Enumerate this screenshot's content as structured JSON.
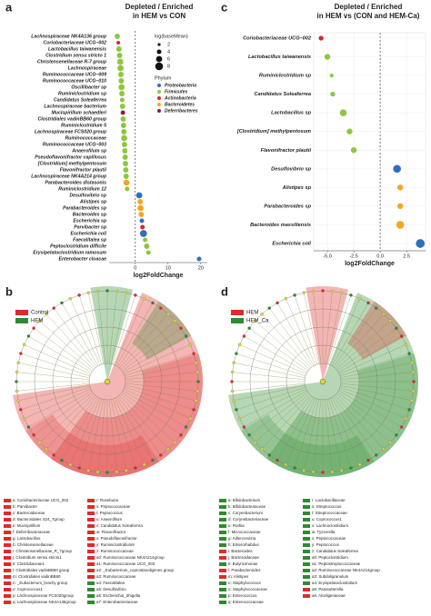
{
  "chart_data": [
    {
      "panel": "a",
      "type": "dot",
      "title": [
        "Depleted / Enriched",
        "in HEM vs CON"
      ],
      "x_label": "log2FoldChange",
      "categories": [
        "Lachnospiraceae NK4A136 group",
        "Coriobacteriaceae UCG–002",
        "Lactobacillus taiwanensis",
        "Clostridium sensu stricto 1",
        "Christensenellaceae R-7 group",
        "Lachnospiraceae",
        "Ruminococcaceae UCG–009",
        "Ruminococcaceae UCG–010",
        "Oscillibacter sp",
        "Ruminiclostridium sp",
        "Candidatus Soleaferrea",
        "Lachnospiraceae bacterium",
        "Mucispirillum schaedleri",
        "Clostridiales vadinBB60 group",
        "Ruminiclostridium 5",
        "Lachnospiraceae FCS020 group",
        "Ruminococcaceae",
        "Ruminococcaceae UCG–003",
        "Anaerofilum sp",
        "Pseudoflavonifractor capillosus",
        "[Clostridium] methylpentosum",
        "Flavonifractor plautii",
        "Lachnospiraceae NK4A214 group",
        "Parabacteroides distasonis",
        "Ruminiclostridium 12",
        "Desulfovibrio sp",
        "Alistipes sp",
        "Parabacteroides sp",
        "Bacteroides sp",
        "Escherichia sp",
        "Parvibacter sp",
        "Escherichia coli",
        "Faecalitalea sp",
        "Peptoclostridium difficile",
        "Erysipelatoclostridium ramosum",
        "Enterobacter cloacae"
      ],
      "values": [
        -5.5,
        -5.2,
        -5,
        -4.8,
        -4.6,
        -4.5,
        -4.4,
        -4.3,
        -4.2,
        -4.1,
        -4,
        -3.9,
        -3.8,
        -3.7,
        -3.6,
        -3.5,
        -3.4,
        -3.3,
        -3.2,
        -3.1,
        -3,
        -2.9,
        -2.8,
        -2.7,
        -2.5,
        1.2,
        1.5,
        1.6,
        1.8,
        2,
        2.2,
        2.5,
        3,
        3.5,
        4,
        19.5
      ],
      "sizes": [
        5,
        3,
        5,
        5,
        6,
        6,
        5,
        5,
        6,
        5,
        4,
        5,
        4,
        5,
        5,
        5,
        6,
        5,
        5,
        5,
        5,
        5,
        5,
        6,
        4,
        6,
        5,
        6,
        5,
        4,
        4,
        7,
        4,
        5,
        4,
        4
      ],
      "groups": [
        "Firmicutes",
        "Actinobacteria",
        "Firmicutes",
        "Firmicutes",
        "Firmicutes",
        "Firmicutes",
        "Firmicutes",
        "Firmicutes",
        "Firmicutes",
        "Firmicutes",
        "Firmicutes",
        "Firmicutes",
        "Deferribacteres",
        "Firmicutes",
        "Firmicutes",
        "Firmicutes",
        "Firmicutes",
        "Firmicutes",
        "Firmicutes",
        "Firmicutes",
        "Firmicutes",
        "Firmicutes",
        "Firmicutes",
        "Bacteroidetes",
        "Firmicutes",
        "Proteobacteria",
        "Bacteroidetes",
        "Bacteroidetes",
        "Bacteroidetes",
        "Proteobacteria",
        "Actinobacteria",
        "Proteobacteria",
        "Firmicutes",
        "Firmicutes",
        "Firmicutes",
        "Proteobacteria"
      ],
      "size_legend": {
        "title": "log(baseMean)",
        "values": [
          2,
          4,
          6,
          8
        ]
      },
      "group_legend": {
        "title": "Phylum",
        "names": [
          "Proteobacteria",
          "Firmicutes",
          "Actinobacteria",
          "Bacteroidetes",
          "Deferribacteres"
        ],
        "colors": [
          "#2f6fc0",
          "#8dc63f",
          "#d6272e",
          "#f5a623",
          "#8b1a4a"
        ]
      },
      "xlim": [
        -8,
        22
      ],
      "xticks": [
        0,
        10,
        20
      ],
      "zero_line": true,
      "grid": false
    },
    {
      "panel": "c",
      "type": "dot",
      "title": [
        "Depleted / Enriched",
        "in HEM vs (CON and HEM-Ca)"
      ],
      "x_label": "log2FoldChange",
      "categories": [
        "Coriobacteriaceae UCG–002",
        "Lactobacillus taiwanensis",
        "Ruminiclostridium sp",
        "Candidatus Soleaferrea",
        "Lactobacillus sp",
        "[Clostridium] methylpentosum",
        "Flavonifractor plautii",
        "Desulfovibrio sp",
        "Alistipes sp",
        "Parabacteroides sp",
        "Bacteroides massiliensis",
        "Escherichia coli"
      ],
      "values": [
        -5.6,
        -5,
        -4.6,
        -4.5,
        -3.5,
        -2.9,
        -2.5,
        1.6,
        1.9,
        1.9,
        1.9,
        3.8
      ],
      "sizes": [
        3,
        4,
        2,
        3,
        5,
        4,
        4,
        6,
        4,
        4,
        6,
        7
      ],
      "groups": [
        "Actinobacteria",
        "Firmicutes",
        "Firmicutes",
        "Firmicutes",
        "Firmicutes",
        "Firmicutes",
        "Firmicutes",
        "Proteobacteria",
        "Bacteroidetes",
        "Bacteroidetes",
        "Bacteroidetes",
        "Proteobacteria"
      ],
      "group_colors": {
        "Proteobacteria": "#2f6fc0",
        "Firmicutes": "#8dc63f",
        "Actinobacteria": "#d6272e",
        "Bacteroidetes": "#f5a623"
      },
      "xlim": [
        -6.3,
        4.3
      ],
      "xticks": [
        {
          "value": -5,
          "label": "-5.0"
        },
        {
          "value": -2.5,
          "label": "-2.5"
        },
        {
          "value": 0,
          "label": "0.0"
        },
        {
          "value": 2.5,
          "label": "2.5"
        }
      ],
      "zero_line": true,
      "grid": true
    }
  ],
  "cladograms": [
    {
      "panel": "b",
      "legend": [
        {
          "name": "Control",
          "color": "#e02a2a"
        },
        {
          "name": "HEM",
          "color": "#2e8b2e"
        }
      ],
      "taxa": [
        {
          "label": "a: Coriobacteriaceae UCG_002",
          "color": "#e02a2a"
        },
        {
          "label": "b: Parvibacter",
          "color": "#e02a2a"
        },
        {
          "label": "c: Bacteroidaceae",
          "color": "#e02a2a"
        },
        {
          "label": "d: Bacteroidales S24_7group",
          "color": "#e02a2a"
        },
        {
          "label": "e: Mucispirillum",
          "color": "#e02a2a"
        },
        {
          "label": "f: Deferribacteraceae",
          "color": "#e02a2a"
        },
        {
          "label": "g: Lactobacillus",
          "color": "#e02a2a"
        },
        {
          "label": "h: Christensenellaceae",
          "color": "#e02a2a"
        },
        {
          "label": "i: Christensenellaceae_R_7group",
          "color": "#e02a2a"
        },
        {
          "label": "j: Clostridium sensu stricto1",
          "color": "#e02a2a"
        },
        {
          "label": "k: Clostridiaceae1",
          "color": "#e02a2a"
        },
        {
          "label": "l: Clostridiales vadinBB60 group",
          "color": "#e02a2a"
        },
        {
          "label": "m: Clostridiales vadinBB60",
          "color": "#e02a2a"
        },
        {
          "label": "n: _Eubacterium_brachy group",
          "color": "#e02a2a"
        },
        {
          "label": "o: Coprococcus1",
          "color": "#e02a2a"
        },
        {
          "label": "p: Lachnospiraceae FCS020group",
          "color": "#e02a2a"
        },
        {
          "label": "q: Lachnospiraceae NK4A136group",
          "color": "#e02a2a"
        },
        {
          "label": "r: Roseburia",
          "color": "#e02a2a"
        },
        {
          "label": "s: Peptococcaceae",
          "color": "#e02a2a"
        },
        {
          "label": "t: Peptococcus",
          "color": "#e02a2a"
        },
        {
          "label": "u: Anaerofilum",
          "color": "#e02a2a"
        },
        {
          "label": "v: Candidatus Soleaferrea",
          "color": "#e02a2a"
        },
        {
          "label": "w: Flavonifractor",
          "color": "#e02a2a"
        },
        {
          "label": "x: Pseudoflavonifractor",
          "color": "#e02a2a"
        },
        {
          "label": "y: Ruminiclostridium9",
          "color": "#e02a2a"
        },
        {
          "label": "z: Ruminococcaceae",
          "color": "#e02a2a"
        },
        {
          "label": "a0: Ruminococcaceae NK4A214group",
          "color": "#e02a2a"
        },
        {
          "label": "a1: Ruminococcaceae UCG_003",
          "color": "#e02a2a"
        },
        {
          "label": "a2: _Eubacterium_coprostanoligenes group",
          "color": "#e02a2a"
        },
        {
          "label": "a3: Ruminococcaceae",
          "color": "#e02a2a"
        },
        {
          "label": "a4: Faecalitalea",
          "color": "#2e8b2e"
        },
        {
          "label": "a5: Desulfovibrio",
          "color": "#2e8b2e"
        },
        {
          "label": "a6: Escherichia_Shigella",
          "color": "#2e8b2e"
        },
        {
          "label": "a7: Enterobacteriaceae",
          "color": "#2e8b2e"
        }
      ]
    },
    {
      "panel": "d",
      "legend": [
        {
          "name": "HEM",
          "color": "#e02a2a"
        },
        {
          "name": "HEM_Ca",
          "color": "#2e8b2e"
        }
      ],
      "taxa": [
        {
          "label": "a: Bifidobacterium",
          "color": "#2e8b2e"
        },
        {
          "label": "b: Bifidobacteriaceae",
          "color": "#2e8b2e"
        },
        {
          "label": "c: Corynebacterium",
          "color": "#2e8b2e"
        },
        {
          "label": "d: Corynebacteriaceae",
          "color": "#2e8b2e"
        },
        {
          "label": "e: Rothia",
          "color": "#2e8b2e"
        },
        {
          "label": "f: Micrococcaceae",
          "color": "#2e8b2e"
        },
        {
          "label": "g: Adlercreutzia",
          "color": "#2e8b2e"
        },
        {
          "label": "h: Enterorhabdus",
          "color": "#2e8b2e"
        },
        {
          "label": "i: Bacteroides",
          "color": "#e02a2a"
        },
        {
          "label": "j: Bacteroidaceae",
          "color": "#e02a2a"
        },
        {
          "label": "k: Butyricimonas",
          "color": "#2e8b2e"
        },
        {
          "label": "l: Parabacteroides",
          "color": "#e02a2a"
        },
        {
          "label": "m: Alistipes",
          "color": "#e02a2a"
        },
        {
          "label": "n: Staphylococcus",
          "color": "#2e8b2e"
        },
        {
          "label": "o: Staphylococcaceae",
          "color": "#2e8b2e"
        },
        {
          "label": "p: Enterococcus",
          "color": "#2e8b2e"
        },
        {
          "label": "q: Enterococcaceae",
          "color": "#2e8b2e"
        },
        {
          "label": "r: Lactobacillaceae",
          "color": "#2e8b2e"
        },
        {
          "label": "s: Streptococcus",
          "color": "#2e8b2e"
        },
        {
          "label": "t: Streptococcaceae",
          "color": "#2e8b2e"
        },
        {
          "label": "u: Coprococcus1",
          "color": "#2e8b2e"
        },
        {
          "label": "v: Lachnoclostridium",
          "color": "#2e8b2e"
        },
        {
          "label": "w: Tyzzerella",
          "color": "#2e8b2e"
        },
        {
          "label": "x: Peptococcaceae",
          "color": "#2e8b2e"
        },
        {
          "label": "y: Peptococcus",
          "color": "#2e8b2e"
        },
        {
          "label": "z: Candidatus Soleaferrea",
          "color": "#2e8b2e"
        },
        {
          "label": "a0: Peptoclostridium",
          "color": "#2e8b2e"
        },
        {
          "label": "a1: Peptostreptococcaceae",
          "color": "#2e8b2e"
        },
        {
          "label": "a2: Ruminococcaceae NK4A214group",
          "color": "#2e8b2e"
        },
        {
          "label": "a3: Subdoligranulum",
          "color": "#2e8b2e"
        },
        {
          "label": "a4: Erysipelatoclostridium",
          "color": "#2e8b2e"
        },
        {
          "label": "a5: Parasutterella",
          "color": "#e02a2a"
        },
        {
          "label": "a6: Alcaligenaceae",
          "color": "#e02a2a"
        }
      ]
    }
  ]
}
